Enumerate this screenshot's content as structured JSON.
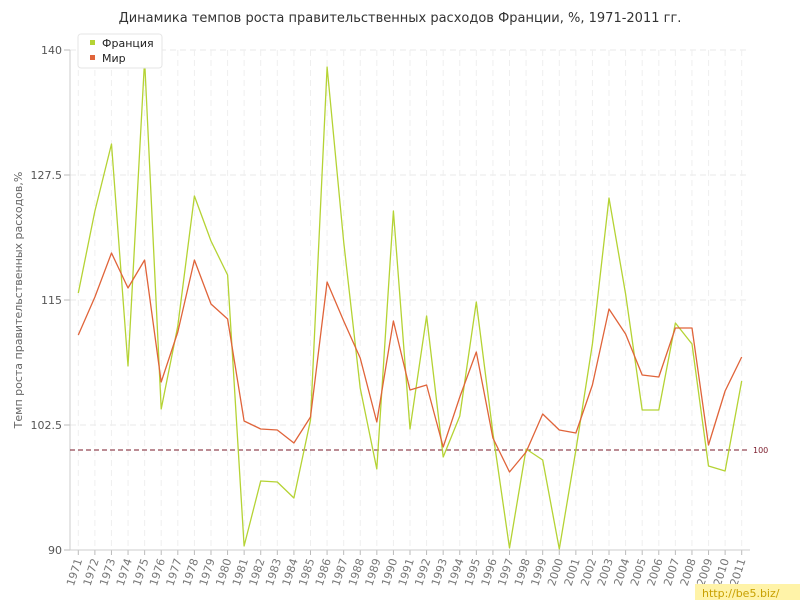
{
  "chart_data": {
    "type": "line",
    "title": "Динамика темпов роста правительственных расходов Франции, %, 1971-2011 гг.",
    "ylabel": "Темп роста правительственных расходов,%",
    "xlabel": "",
    "ylim": [
      90,
      140
    ],
    "yticks": [
      90,
      102.5,
      115,
      127.5,
      140
    ],
    "grid": true,
    "legend_position": "top-left",
    "x": [
      1971,
      1972,
      1973,
      1974,
      1975,
      1976,
      1977,
      1978,
      1979,
      1980,
      1981,
      1982,
      1983,
      1984,
      1985,
      1986,
      1987,
      1988,
      1989,
      1990,
      1991,
      1992,
      1993,
      1994,
      1995,
      1996,
      1997,
      1998,
      1999,
      2000,
      2001,
      2002,
      2003,
      2004,
      2005,
      2006,
      2007,
      2008,
      2009,
      2010,
      2011
    ],
    "series": [
      {
        "name": "Франция",
        "color": "#b5d334",
        "values": [
          115.7,
          123.9,
          130.6,
          108.4,
          139.0,
          104.1,
          112.4,
          125.4,
          120.9,
          117.5,
          90.4,
          96.9,
          96.8,
          95.2,
          103.0,
          138.3,
          120.8,
          106.2,
          98.1,
          123.9,
          102.1,
          113.4,
          99.3,
          103.4,
          114.8,
          101.7,
          90.2,
          100.1,
          99.0,
          90.1,
          100.0,
          110.6,
          125.2,
          115.6,
          104.0,
          104.0,
          112.7,
          110.6,
          98.4,
          97.9,
          106.9
        ],
        "unlabeled_name": false
      },
      {
        "name": "Мир",
        "color": "#e0643a",
        "values": [
          111.5,
          115.3,
          119.7,
          116.2,
          119.0,
          106.8,
          111.8,
          119.0,
          114.6,
          113.1,
          102.9,
          102.1,
          102.0,
          100.7,
          103.3,
          116.8,
          112.9,
          109.2,
          102.8,
          112.9,
          106.0,
          106.5,
          100.3,
          105.3,
          109.8,
          101.2,
          97.8,
          99.8,
          103.6,
          102.0,
          101.7,
          106.5,
          114.1,
          111.6,
          107.5,
          107.3,
          112.2,
          112.2,
          100.5,
          105.9,
          109.3
        ]
      }
    ],
    "reference_line": {
      "value": 100,
      "label": "100",
      "color": "#7a1a2a"
    }
  },
  "watermark": "http://be5.biz/"
}
